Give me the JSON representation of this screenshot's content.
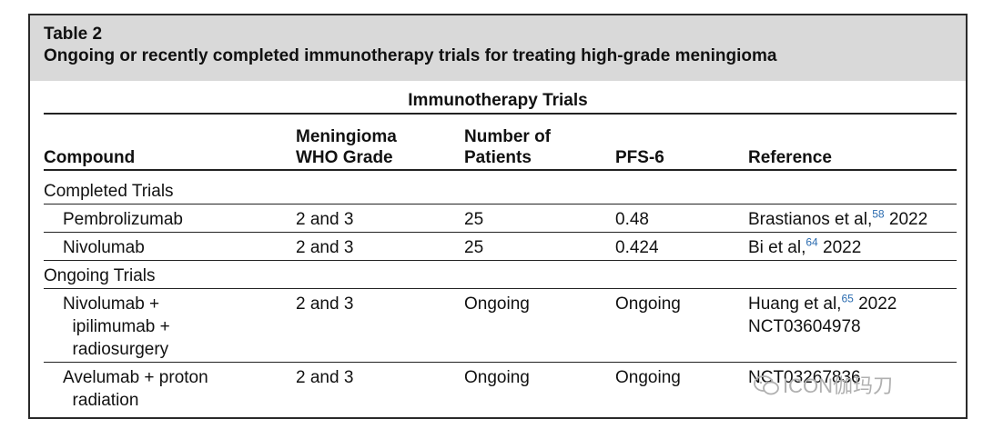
{
  "table": {
    "label": "Table 2",
    "title": "Ongoing or recently completed immunotherapy trials for treating high-grade meningioma",
    "section_title": "Immunotherapy Trials",
    "headers": {
      "compound": "Compound",
      "grade_line1": "Meningioma",
      "grade_line2": "WHO Grade",
      "patients_line1": "Number of",
      "patients_line2": "Patients",
      "pfs": "PFS-6",
      "reference": "Reference"
    },
    "groups": {
      "completed": "Completed Trials",
      "ongoing": "Ongoing Trials"
    },
    "rows": [
      {
        "compound": [
          "Pembrolizumab"
        ],
        "grade": "2 and 3",
        "patients": "25",
        "pfs": "0.48",
        "ref_author": "Brastianos et al,",
        "ref_sup": "58",
        "ref_year": " 2022",
        "ref_extra": ""
      },
      {
        "compound": [
          "Nivolumab"
        ],
        "grade": "2 and 3",
        "patients": "25",
        "pfs": "0.424",
        "ref_author": "Bi et al,",
        "ref_sup": "64",
        "ref_year": " 2022",
        "ref_extra": ""
      },
      {
        "compound": [
          "Nivolumab +",
          "  ipilimumab +",
          "  radiosurgery"
        ],
        "grade": "2 and 3",
        "patients": "Ongoing",
        "pfs": "Ongoing",
        "ref_author": "Huang et al,",
        "ref_sup": "65",
        "ref_year": " 2022",
        "ref_extra": "NCT03604978"
      },
      {
        "compound": [
          "Avelumab + proton",
          "  radiation"
        ],
        "grade": "2 and 3",
        "patients": "Ongoing",
        "pfs": "Ongoing",
        "ref_author": "NCT03267836",
        "ref_sup": "",
        "ref_year": "",
        "ref_extra": ""
      }
    ]
  },
  "watermark": {
    "text": "ICON伽玛刀",
    "icon": "wechat-icon"
  }
}
